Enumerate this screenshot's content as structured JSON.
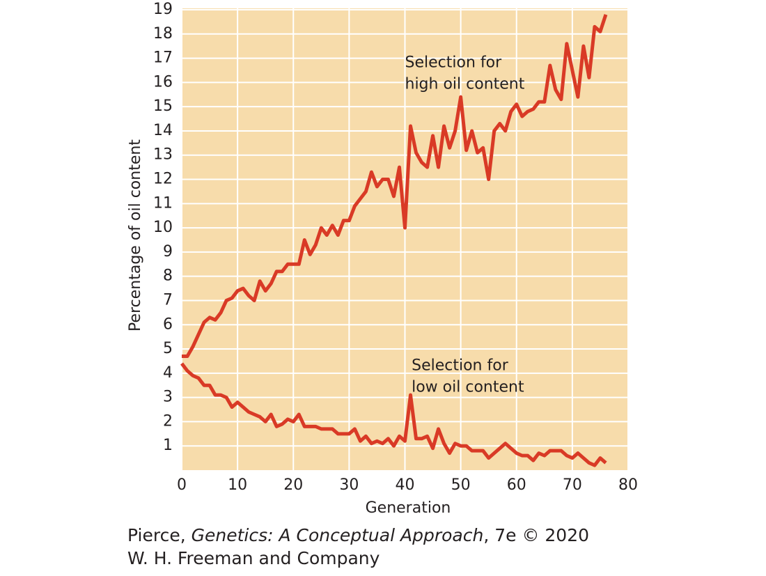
{
  "chart_data": {
    "type": "line",
    "xlabel": "Generation",
    "ylabel": "Percentage of oil content",
    "x": [
      0,
      1,
      2,
      3,
      4,
      5,
      6,
      7,
      8,
      9,
      10,
      11,
      12,
      13,
      14,
      15,
      16,
      17,
      18,
      19,
      20,
      21,
      22,
      23,
      24,
      25,
      26,
      27,
      28,
      29,
      30,
      31,
      32,
      33,
      34,
      35,
      36,
      37,
      38,
      39,
      40,
      41,
      42,
      43,
      44,
      45,
      46,
      47,
      48,
      49,
      50,
      51,
      52,
      53,
      54,
      55,
      56,
      57,
      58,
      59,
      60,
      61,
      62,
      63,
      64,
      65,
      66,
      67,
      68,
      69,
      70,
      71,
      72,
      73,
      74,
      75,
      76
    ],
    "series": [
      {
        "color": "#d93a26",
        "values": [
          4.7,
          4.7,
          5.1,
          5.6,
          6.1,
          6.3,
          6.2,
          6.5,
          7.0,
          7.1,
          7.4,
          7.5,
          7.2,
          7.0,
          7.8,
          7.4,
          7.7,
          8.2,
          8.2,
          8.5,
          8.5,
          8.5,
          9.5,
          8.9,
          9.3,
          10.0,
          9.7,
          10.1,
          9.7,
          10.3,
          10.3,
          10.9,
          11.2,
          11.5,
          12.3,
          11.7,
          12.0,
          12.0,
          11.3,
          12.5,
          10.0,
          14.2,
          13.1,
          12.7,
          12.5,
          13.8,
          12.5,
          14.2,
          13.3,
          14.0,
          15.4,
          13.2,
          14.0,
          13.1,
          13.3,
          12.0,
          14.0,
          14.3,
          14.0,
          14.8,
          15.1,
          14.6,
          14.8,
          14.9,
          15.2,
          15.2,
          16.7,
          15.7,
          15.3,
          17.6,
          16.5,
          15.4,
          17.5,
          16.2,
          18.3,
          18.1,
          18.8
        ]
      },
      {
        "color": "#d93a26",
        "values": [
          4.4,
          4.1,
          3.9,
          3.8,
          3.5,
          3.5,
          3.1,
          3.1,
          3.0,
          2.6,
          2.8,
          2.6,
          2.4,
          2.3,
          2.2,
          2.0,
          2.3,
          1.8,
          1.9,
          2.1,
          2.0,
          2.3,
          1.8,
          1.8,
          1.8,
          1.7,
          1.7,
          1.7,
          1.5,
          1.5,
          1.5,
          1.7,
          1.2,
          1.4,
          1.1,
          1.2,
          1.1,
          1.3,
          1.0,
          1.4,
          1.2,
          3.1,
          1.3,
          1.3,
          1.4,
          0.9,
          1.7,
          1.1,
          0.7,
          1.1,
          1.0,
          1.0,
          0.8,
          0.8,
          0.8,
          0.5,
          0.7,
          0.9,
          1.1,
          0.9,
          0.7,
          0.6,
          0.6,
          0.4,
          0.7,
          0.6,
          0.8,
          0.8,
          0.8,
          0.6,
          0.5,
          0.7,
          0.5,
          0.3,
          0.2,
          0.5,
          0.3
        ]
      }
    ],
    "annotations": [
      {
        "lines": [
          "Selection for",
          "high oil content"
        ],
        "x": 40,
        "y": 16.8
      },
      {
        "lines": [
          "Selection for",
          "low oil content"
        ],
        "x": 41.2,
        "y": 4.3
      }
    ],
    "xlim": [
      0,
      80
    ],
    "xticks": [
      0,
      10,
      20,
      30,
      40,
      50,
      60,
      70,
      80
    ],
    "ylim": [
      0,
      19
    ],
    "yticks": [
      1,
      2,
      3,
      4,
      5,
      6,
      7,
      8,
      9,
      10,
      11,
      12,
      13,
      14,
      15,
      16,
      17,
      18,
      19
    ],
    "grid": true,
    "background": "#f7dcab",
    "grid_color": "#ffffff"
  },
  "caption": {
    "line1": [
      "Pierce, ",
      "Genetics: A Conceptual Approach",
      ", 7e © 2020"
    ],
    "line2": "W. H. Freeman and Company"
  }
}
